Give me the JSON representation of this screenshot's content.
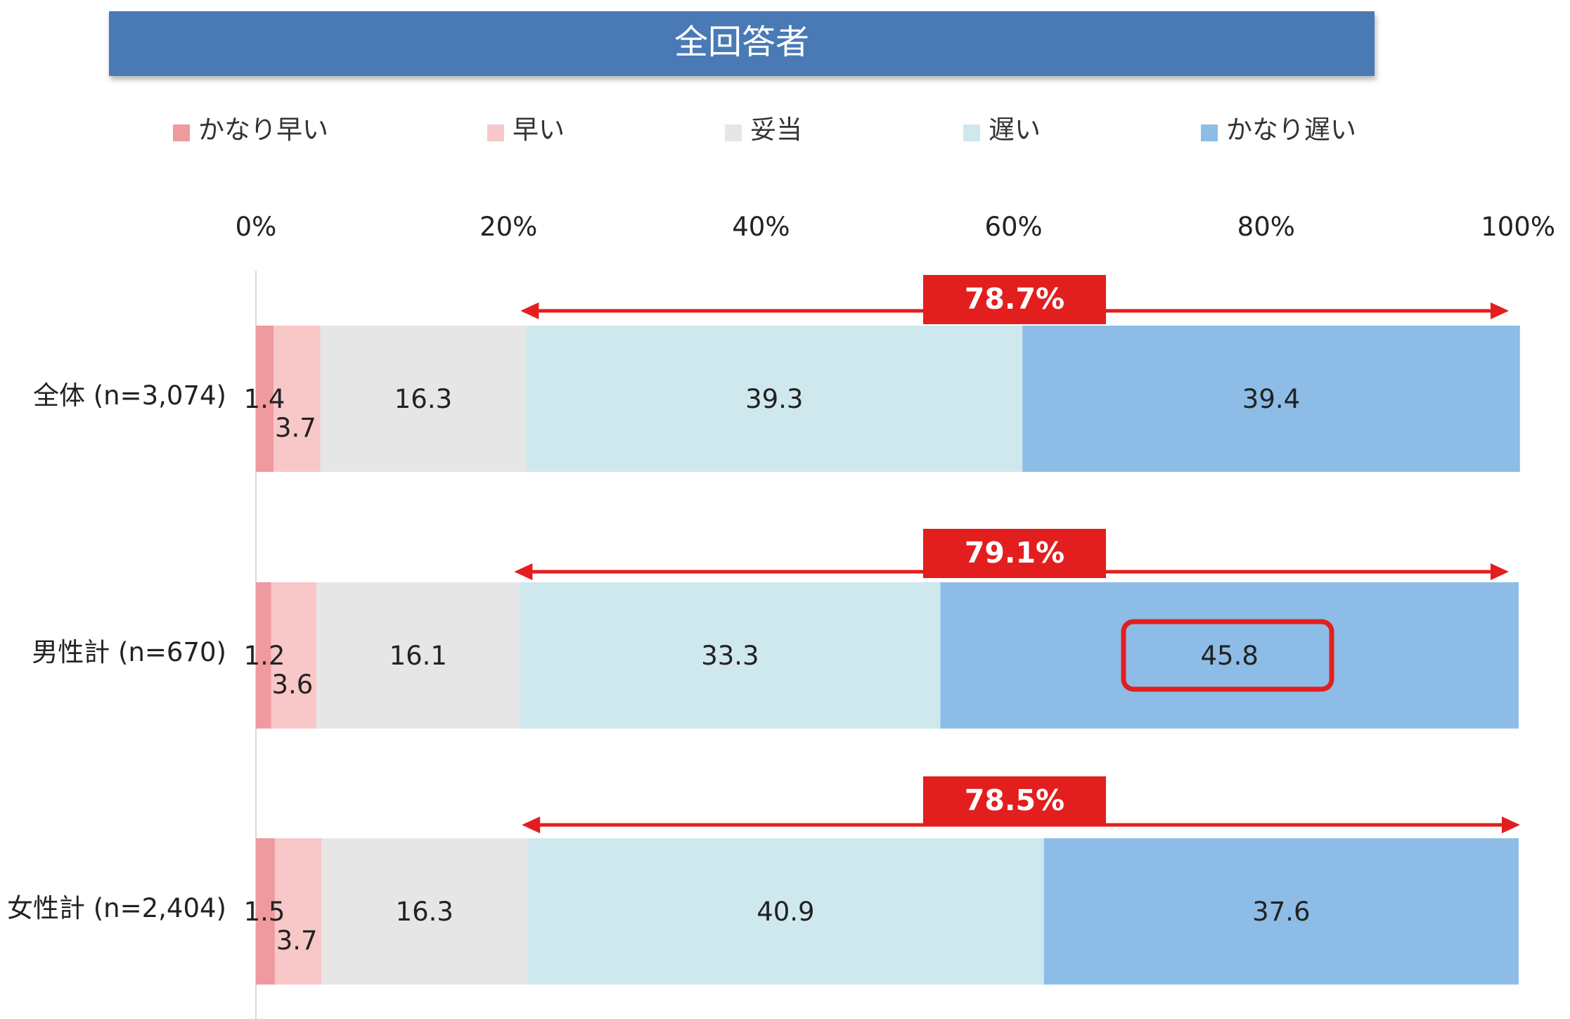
{
  "chart_data": {
    "type": "bar",
    "orientation": "horizontal",
    "stacked": "100%",
    "title": "全回答者",
    "x_ticks": [
      "0%",
      "20%",
      "40%",
      "60%",
      "80%",
      "100%"
    ],
    "xlim": [
      0,
      100
    ],
    "legend_position": "top",
    "categories": [
      "全体 (n=3,074)",
      "男性計 (n=670)",
      "女性計 (n=2,404)"
    ],
    "series": [
      {
        "name": "かなり早い",
        "color": "#ee9a9f",
        "values": [
          1.4,
          1.2,
          1.5
        ],
        "labels": [
          "1.4",
          "1.2",
          "1.5"
        ]
      },
      {
        "name": "早い",
        "color": "#f8c7c8",
        "values": [
          3.7,
          3.6,
          3.7
        ],
        "labels": [
          "3.7",
          "3.6",
          "3.7"
        ]
      },
      {
        "name": "妥当",
        "color": "#e6e6e6",
        "values": [
          16.3,
          16.1,
          16.3
        ],
        "labels": [
          "16.3",
          "16.1",
          "16.3"
        ]
      },
      {
        "name": "遅い",
        "color": "#cfe8ee",
        "values": [
          39.3,
          33.3,
          40.9
        ],
        "labels": [
          "39.3",
          "33.3",
          "40.9"
        ]
      },
      {
        "name": "かなり遅い",
        "color": "#8dbde6",
        "values": [
          39.4,
          45.8,
          37.6
        ],
        "labels": [
          "39.4",
          "45.8",
          "37.6"
        ]
      }
    ],
    "annotations": [
      {
        "category_index": 0,
        "label": "78.7%",
        "from_series": 3
      },
      {
        "category_index": 1,
        "label": "79.1%",
        "from_series": 3
      },
      {
        "category_index": 2,
        "label": "78.5%",
        "from_series": 3
      }
    ],
    "highlight": {
      "category_index": 1,
      "series_index": 4
    }
  },
  "colors": {
    "title_bar": "#4a7ab5",
    "annotation": "#e31e1e",
    "axis_line": "#d9d9d9"
  }
}
